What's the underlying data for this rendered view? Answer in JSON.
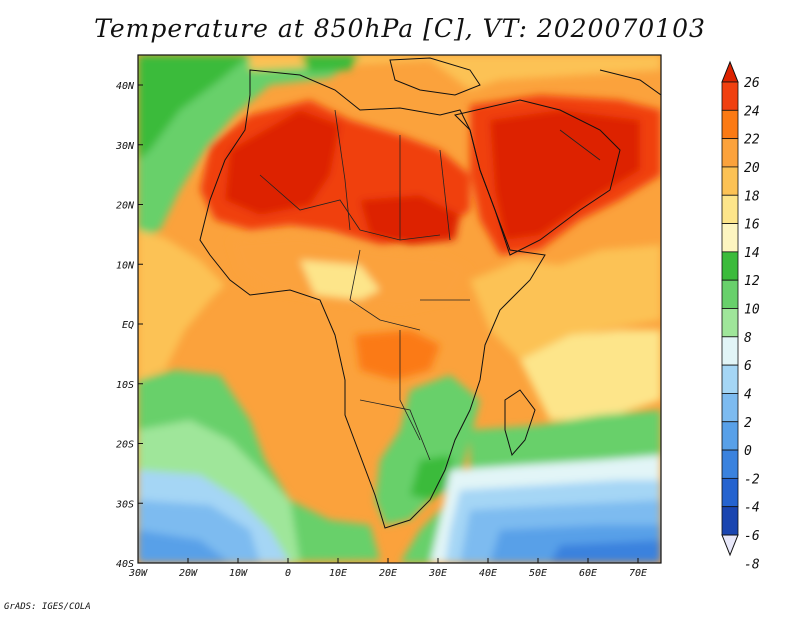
{
  "title": "Temperature at 850hPa [C], VT: 2020070103",
  "footer": "GrADS: IGES/COLA",
  "lat_ticks": [
    "40N",
    "30N",
    "20N",
    "10N",
    "EQ",
    "10S",
    "20S",
    "30S",
    "40S"
  ],
  "lon_ticks": [
    "30W",
    "20W",
    "10W",
    "0",
    "10E",
    "20E",
    "30E",
    "40E",
    "50E",
    "60E",
    "70E"
  ],
  "colorbar": {
    "labels": [
      "26",
      "24",
      "22",
      "20",
      "18",
      "16",
      "14",
      "12",
      "10",
      "8",
      "6",
      "4",
      "2",
      "0",
      "-2",
      "-4",
      "-6",
      "-8"
    ],
    "colors": [
      "#dd2200",
      "#f04010",
      "#fb7a14",
      "#fba23c",
      "#fcc255",
      "#fde58a",
      "#fdf5c0",
      "#3bbb3b",
      "#68d06b",
      "#9fe69a",
      "#e2f5f7",
      "#a5d6f5",
      "#7dbbf0",
      "#58a0e8",
      "#3a82de",
      "#2563cf",
      "#1a45b0",
      "#0f1f7a"
    ]
  }
}
